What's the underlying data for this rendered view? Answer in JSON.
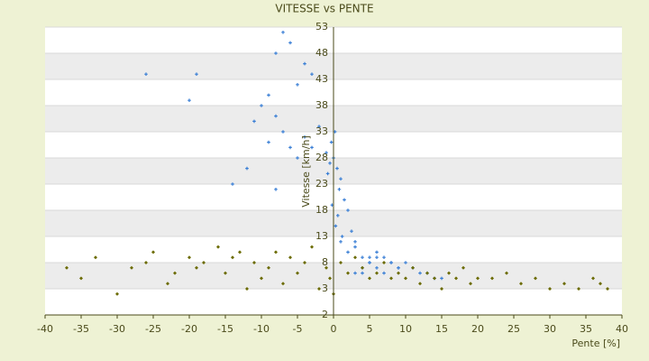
{
  "chart_data": {
    "type": "scatter",
    "title": "VITESSE vs PENTE",
    "x_label": "Pente [%]",
    "y_label": "Vitesse [km/h]",
    "xlim": [
      -40,
      40
    ],
    "xticks": [
      -40,
      -35,
      -30,
      -25,
      -20,
      -15,
      -10,
      -5,
      0,
      5,
      10,
      15,
      20,
      25,
      30,
      35,
      40
    ],
    "ylim": [
      -2,
      53
    ],
    "yticks": [
      -2,
      3,
      8,
      13,
      18,
      23,
      28,
      33,
      38,
      43,
      48,
      53
    ],
    "grid": true,
    "series": [
      {
        "color": "#3a7fd5",
        "marker": "plus",
        "x": [
          -26,
          -19,
          -20,
          -7,
          -6,
          -8,
          -4,
          -3,
          -5,
          -9,
          -10,
          -11,
          -7,
          -6,
          -8,
          -5,
          -4,
          -2,
          -9,
          -12,
          -14,
          -8,
          -3,
          -1,
          -0.5,
          0,
          0.5,
          1,
          -0.3,
          0.2,
          0.8,
          1.5,
          2,
          0.3,
          -0.8,
          1.2,
          0.6,
          -0.2,
          1,
          2.5,
          3,
          4,
          5,
          6,
          7,
          8,
          9,
          10,
          3,
          4,
          5,
          6,
          7,
          8,
          11,
          12,
          14,
          2,
          3,
          5,
          4,
          6,
          9,
          13,
          15
        ],
        "values": [
          44,
          44,
          39,
          52,
          50,
          48,
          46,
          44,
          42,
          40,
          38,
          35,
          33,
          30,
          36,
          28,
          32,
          34,
          31,
          26,
          23,
          22,
          30,
          29,
          27,
          28,
          26,
          24,
          31,
          33,
          22,
          20,
          18,
          15,
          25,
          13,
          17,
          19,
          12,
          14,
          11,
          9,
          8,
          10,
          9,
          8,
          7,
          8,
          6,
          7,
          9,
          7,
          6,
          8,
          7,
          6,
          5,
          10,
          12,
          8,
          6,
          9,
          7,
          6,
          5
        ]
      },
      {
        "color": "#6b6b00",
        "marker": "diamond",
        "x": [
          -37,
          -35,
          -33,
          -30,
          -28,
          -26,
          -25,
          -23,
          -22,
          -20,
          -19,
          -18,
          -16,
          -15,
          -14,
          -13,
          -12,
          -11,
          -10,
          -9,
          -8,
          -7,
          -6,
          -5,
          -4,
          -3,
          -2,
          -1,
          -0.5,
          0,
          1,
          2,
          3,
          4,
          5,
          6,
          7,
          8,
          9,
          10,
          11,
          12,
          13,
          14,
          15,
          16,
          17,
          18,
          19,
          20,
          22,
          24,
          26,
          28,
          30,
          32,
          34,
          36,
          37,
          38
        ],
        "values": [
          7,
          5,
          9,
          2,
          7,
          8,
          10,
          4,
          6,
          9,
          7,
          8,
          11,
          6,
          9,
          10,
          3,
          8,
          5,
          7,
          10,
          4,
          9,
          6,
          8,
          11,
          3,
          7,
          5,
          2,
          8,
          6,
          9,
          7,
          5,
          6,
          8,
          5,
          6,
          5,
          7,
          4,
          6,
          5,
          3,
          6,
          5,
          7,
          4,
          5,
          5,
          6,
          4,
          5,
          3,
          4,
          3,
          5,
          4,
          3
        ]
      }
    ]
  }
}
